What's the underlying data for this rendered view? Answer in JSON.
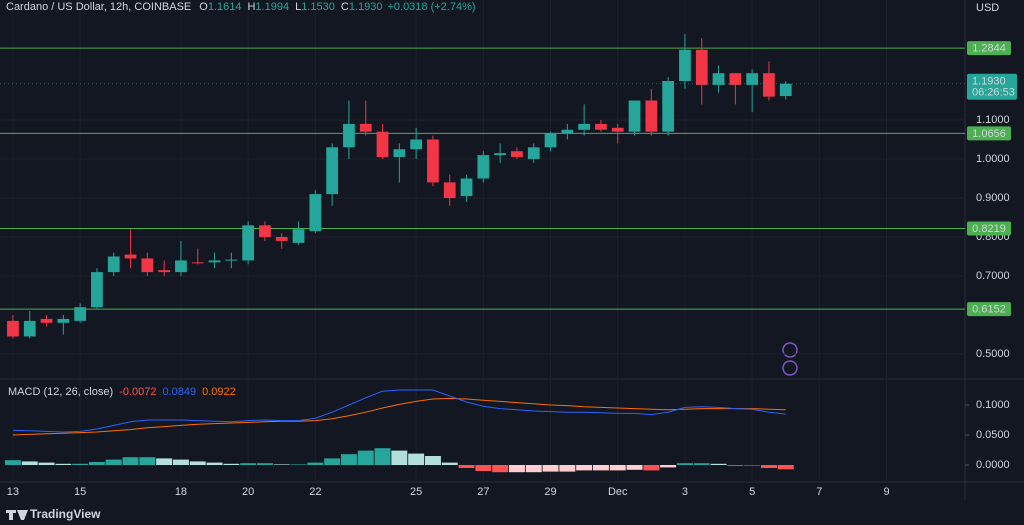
{
  "header": {
    "symbol": "Cardano / US Dollar, 12h, COINBASE",
    "ohlc": [
      {
        "key": "O",
        "value": "1.1614"
      },
      {
        "key": "H",
        "value": "1.1994"
      },
      {
        "key": "L",
        "value": "1.1530"
      },
      {
        "key": "C",
        "value": "1.1930"
      }
    ],
    "change": "+0.0318 (+2.74%)",
    "currency": "USD",
    "brand": "TradingView"
  },
  "chart_data": [
    {
      "type": "candlestick",
      "x": [
        0,
        1,
        2,
        3,
        4,
        5,
        6,
        7,
        8,
        9,
        10,
        11,
        12,
        13,
        14,
        15,
        16,
        17,
        18,
        19,
        20,
        21,
        22,
        23,
        24,
        25,
        26,
        27,
        28,
        29,
        30,
        31,
        32,
        33,
        34,
        35,
        36,
        37,
        38,
        39,
        40,
        41,
        42,
        43,
        44,
        45,
        46
      ],
      "open": [
        0.585,
        0.545,
        0.59,
        0.58,
        0.585,
        0.62,
        0.71,
        0.755,
        0.745,
        0.715,
        0.71,
        0.735,
        0.735,
        0.74,
        0.74,
        0.83,
        0.8,
        0.785,
        0.815,
        0.91,
        1.03,
        1.09,
        1.07,
        1.005,
        1.025,
        1.05,
        0.94,
        0.905,
        0.95,
        1.01,
        1.02,
        1.0,
        1.03,
        1.065,
        1.075,
        1.09,
        1.08,
        1.07,
        1.15,
        1.07,
        1.2,
        1.28,
        1.19,
        1.22,
        1.19,
        1.22,
        1.1614
      ],
      "high": [
        0.6,
        0.61,
        0.6,
        0.6,
        0.63,
        0.72,
        0.76,
        0.82,
        0.76,
        0.74,
        0.79,
        0.77,
        0.76,
        0.76,
        0.84,
        0.84,
        0.81,
        0.84,
        0.92,
        1.04,
        1.15,
        1.15,
        1.09,
        1.04,
        1.08,
        1.06,
        0.96,
        0.96,
        1.02,
        1.04,
        1.03,
        1.04,
        1.07,
        1.09,
        1.14,
        1.1,
        1.09,
        1.15,
        1.18,
        1.21,
        1.32,
        1.31,
        1.24,
        1.22,
        1.23,
        1.25,
        1.1994
      ],
      "low": [
        0.54,
        0.54,
        0.57,
        0.55,
        0.58,
        0.615,
        0.7,
        0.72,
        0.7,
        0.7,
        0.7,
        0.73,
        0.72,
        0.72,
        0.73,
        0.79,
        0.77,
        0.78,
        0.81,
        0.88,
        1.0,
        1.06,
        1.0,
        0.94,
        1.0,
        0.93,
        0.88,
        0.89,
        0.94,
        0.99,
        1.0,
        0.99,
        1.02,
        1.05,
        1.06,
        1.07,
        1.04,
        1.06,
        1.06,
        1.06,
        1.18,
        1.14,
        1.17,
        1.14,
        1.12,
        1.15,
        1.153
      ],
      "close": [
        0.545,
        0.585,
        0.58,
        0.59,
        0.62,
        0.71,
        0.75,
        0.745,
        0.71,
        0.71,
        0.74,
        0.733,
        0.74,
        0.742,
        0.83,
        0.8,
        0.79,
        0.82,
        0.91,
        1.03,
        1.09,
        1.07,
        1.005,
        1.025,
        1.05,
        0.94,
        0.9,
        0.95,
        1.01,
        1.015,
        1.005,
        1.03,
        1.065,
        1.075,
        1.09,
        1.075,
        1.07,
        1.15,
        1.07,
        1.2,
        1.28,
        1.19,
        1.22,
        1.19,
        1.22,
        1.16,
        1.193
      ],
      "up_color": "#26a69a",
      "down_color": "#f23645",
      "xlim": [
        -0.77,
        56.67
      ],
      "xticks": [
        {
          "value": 0,
          "label": "13"
        },
        {
          "value": 4,
          "label": "15"
        },
        {
          "value": 10,
          "label": "18"
        },
        {
          "value": 14,
          "label": "20"
        },
        {
          "value": 18,
          "label": "22"
        },
        {
          "value": 24,
          "label": "25"
        },
        {
          "value": 28,
          "label": "27"
        },
        {
          "value": 32,
          "label": "29"
        },
        {
          "value": 36,
          "label": "Dec"
        },
        {
          "value": 40,
          "label": "3"
        },
        {
          "value": 44,
          "label": "5"
        },
        {
          "value": 48,
          "label": "7"
        },
        {
          "value": 52,
          "label": "9"
        }
      ],
      "ylim": [
        0.4385,
        1.4077
      ],
      "yticks": [
        {
          "value": 1.1,
          "label": "1.1000"
        },
        {
          "value": 1.0,
          "label": "1.0000"
        },
        {
          "value": 0.9,
          "label": "0.9000"
        },
        {
          "value": 0.8,
          "label": "0.8000"
        },
        {
          "value": 0.7,
          "label": "0.7000"
        },
        {
          "value": 0.5,
          "label": "0.5000"
        }
      ],
      "grid": true,
      "levels": {
        "values": [
          1.2844,
          1.0656,
          0.8219,
          0.6152
        ],
        "color": "#4caf50"
      },
      "last_price": {
        "value": 1.193,
        "label": "1.1930",
        "countdown": "06:26:53",
        "color": "#26a69a"
      }
    },
    {
      "type": "macd",
      "title": "MACD (12, 26, close)",
      "histogram": {
        "values": [
          0.008,
          0.006,
          0.004,
          0.002,
          0.002,
          0.005,
          0.009,
          0.013,
          0.013,
          0.011,
          0.009,
          0.006,
          0.004,
          0.002,
          0.003,
          0.003,
          0.001,
          0.001,
          0.004,
          0.011,
          0.018,
          0.024,
          0.028,
          0.024,
          0.019,
          0.015,
          0.004,
          -0.005,
          -0.01,
          -0.012,
          -0.012,
          -0.012,
          -0.011,
          -0.011,
          -0.009,
          -0.009,
          -0.009,
          -0.008,
          -0.009,
          -0.004,
          0.003,
          0.003,
          0.002,
          0.0,
          -0.001,
          -0.005,
          -0.0072
        ],
        "colors": [
          "#26a69a",
          "#b2dfdb",
          "#ffcdd2",
          "#ff5252"
        ],
        "legend_color": "#ff5252"
      },
      "macd": {
        "values": [
          0.058,
          0.057,
          0.056,
          0.055,
          0.056,
          0.06,
          0.066,
          0.072,
          0.075,
          0.075,
          0.075,
          0.074,
          0.073,
          0.072,
          0.074,
          0.075,
          0.074,
          0.074,
          0.078,
          0.088,
          0.1,
          0.112,
          0.123,
          0.125,
          0.125,
          0.125,
          0.115,
          0.105,
          0.098,
          0.094,
          0.092,
          0.09,
          0.089,
          0.088,
          0.088,
          0.087,
          0.086,
          0.086,
          0.084,
          0.088,
          0.096,
          0.097,
          0.096,
          0.094,
          0.093,
          0.088,
          0.0849
        ],
        "color": "#2962ff"
      },
      "signal": {
        "values": [
          0.05,
          0.051,
          0.052,
          0.053,
          0.054,
          0.055,
          0.057,
          0.059,
          0.062,
          0.064,
          0.066,
          0.068,
          0.069,
          0.07,
          0.071,
          0.072,
          0.073,
          0.073,
          0.074,
          0.077,
          0.082,
          0.088,
          0.095,
          0.101,
          0.106,
          0.11,
          0.111,
          0.11,
          0.108,
          0.106,
          0.104,
          0.102,
          0.1,
          0.099,
          0.097,
          0.096,
          0.095,
          0.094,
          0.093,
          0.092,
          0.093,
          0.094,
          0.094,
          0.094,
          0.094,
          0.093,
          0.0922
        ],
        "color": "#ff6d00"
      },
      "ylim": [
        -0.025,
        0.1417
      ],
      "yticks": [
        {
          "value": 0.1,
          "label": "0.1000"
        },
        {
          "value": 0.05,
          "label": "0.0500"
        },
        {
          "value": 0,
          "label": "0.0000"
        }
      ]
    }
  ]
}
